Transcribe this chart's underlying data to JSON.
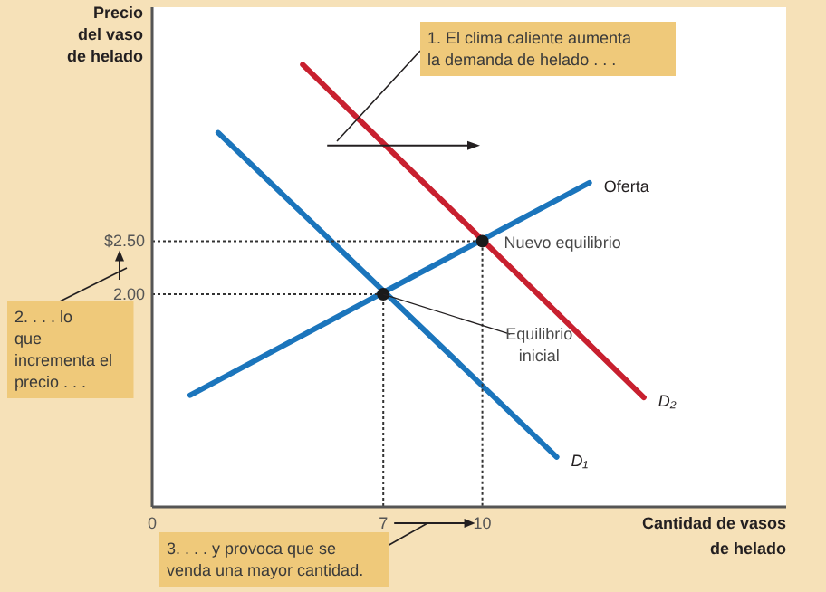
{
  "chart_data": {
    "type": "line",
    "xlabel": "Cantidad de vasos de helado",
    "ylabel": "Precio del vaso de helado",
    "xlim": [
      0,
      19.2
    ],
    "ylim": [
      0,
      4.7
    ],
    "xticks": [
      0,
      7,
      10
    ],
    "yticks": [
      {
        "value": 2.5,
        "label": "$2.50"
      },
      {
        "value": 2,
        "label": "2.00"
      }
    ],
    "grid": false,
    "marker": "none",
    "line_style": "solid",
    "series": [
      {
        "name": "D₁",
        "color": "#1b75bc",
        "x": [
          2.0,
          12.25
        ],
        "values": [
          3.52,
          0.47
        ]
      },
      {
        "name": "D₂",
        "color": "#c8202f",
        "x": [
          4.56,
          14.89
        ],
        "values": [
          4.16,
          1.03
        ]
      },
      {
        "name": "Oferta",
        "color": "#1b75bc",
        "x": [
          1.15,
          13.24
        ],
        "values": [
          1.05,
          3.05
        ]
      },
      {
        "color": "#333333",
        "x": [
          0,
          7,
          7
        ],
        "values": [
          2,
          2,
          0
        ],
        "line_style": "dotted"
      },
      {
        "color": "#333333",
        "x": [
          0,
          10,
          10
        ],
        "values": [
          2.5,
          2.5,
          0
        ],
        "line_style": "dotted"
      },
      {
        "type": "scatter",
        "color": "#1a1a1a",
        "marker": "circle",
        "x": [
          7,
          10
        ],
        "values": [
          2,
          2.5
        ]
      }
    ],
    "annotations": [
      {
        "text": "Nuevo equilibrio",
        "x": 10,
        "y": 2.5
      },
      {
        "text": "Equilibrio inicial",
        "x": 7,
        "y": 2
      },
      "1. El clima caliente aumenta la demanda de helado . . .",
      "2. . . . lo que incrementa el precio . . .",
      "3. . . . y provoca que se venda una mayor cantidad."
    ]
  }
}
